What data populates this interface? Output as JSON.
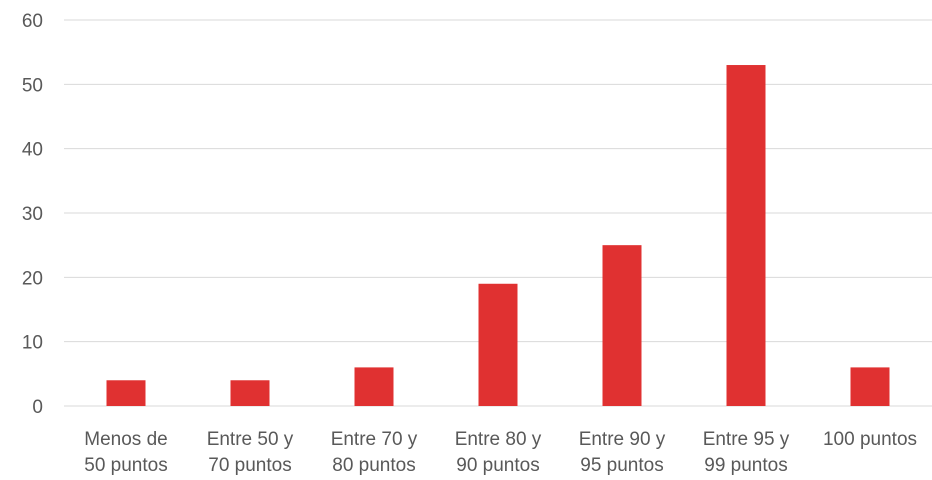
{
  "chart_data": {
    "type": "bar",
    "categories": [
      [
        "Menos de",
        "50 puntos"
      ],
      [
        "Entre 50 y",
        "70 puntos"
      ],
      [
        "Entre 70 y",
        "80 puntos"
      ],
      [
        "Entre 80 y",
        "90 puntos"
      ],
      [
        "Entre 90 y",
        "95 puntos"
      ],
      [
        "Entre 95 y",
        "99 puntos"
      ],
      [
        "100 puntos"
      ]
    ],
    "values": [
      4,
      4,
      6,
      19,
      25,
      53,
      6
    ],
    "ylim": [
      0,
      60
    ],
    "yticks": [
      "0",
      "10",
      "20",
      "30",
      "40",
      "50",
      "60"
    ],
    "bar_color": "#e03131",
    "grid": true,
    "legend": false
  }
}
